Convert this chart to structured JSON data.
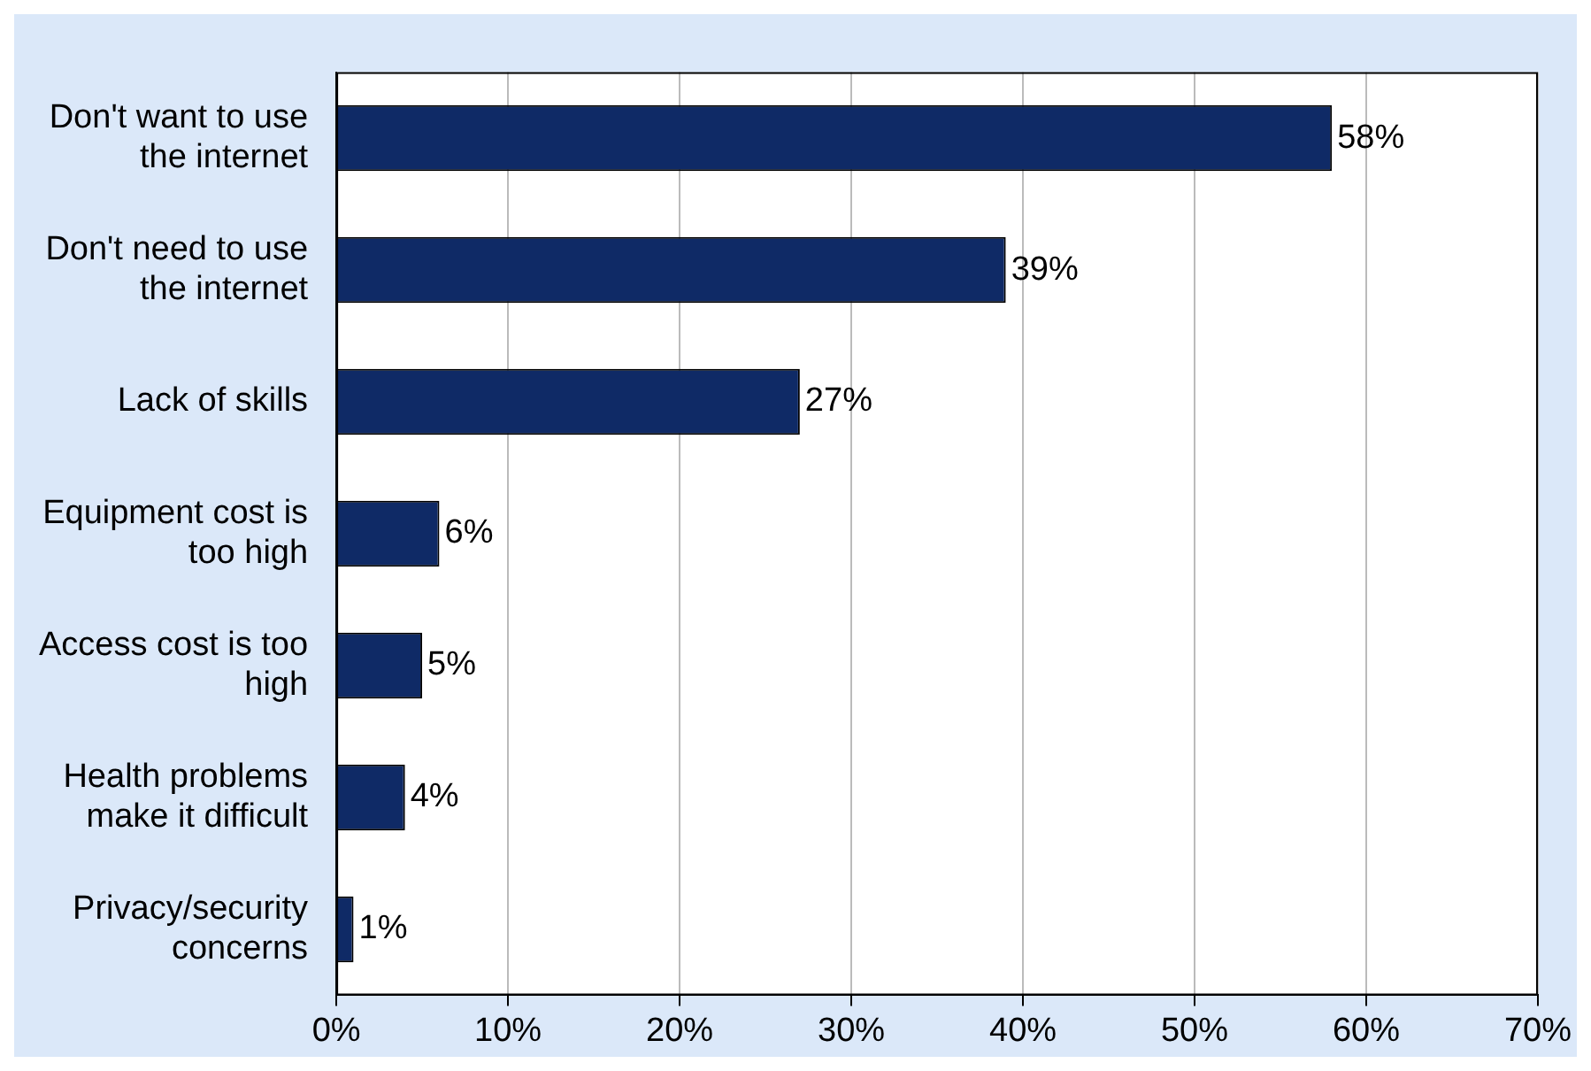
{
  "chart_data": {
    "type": "bar",
    "orientation": "horizontal",
    "categories": [
      "Don't want to use the internet",
      "Don't need to use the internet",
      "Lack of skills",
      "Equipment cost is too high",
      "Access cost is too high",
      "Health problems make it difficult",
      "Privacy/security concerns"
    ],
    "values": [
      58,
      39,
      27,
      6,
      5,
      4,
      1
    ],
    "color": "#0f2a66",
    "value_labels": [
      "58%",
      "39%",
      "27%",
      "6%",
      "5%",
      "4%",
      "1%"
    ],
    "xlim": [
      0,
      70
    ],
    "xticks": [
      {
        "value": 0,
        "label": "0%"
      },
      {
        "value": 10,
        "label": "10%"
      },
      {
        "value": 20,
        "label": "20%"
      },
      {
        "value": 30,
        "label": "30%"
      },
      {
        "value": 40,
        "label": "40%"
      },
      {
        "value": 50,
        "label": "50%"
      },
      {
        "value": 60,
        "label": "60%"
      },
      {
        "value": 70,
        "label": "70%"
      }
    ],
    "grid": "x",
    "legend": false
  }
}
